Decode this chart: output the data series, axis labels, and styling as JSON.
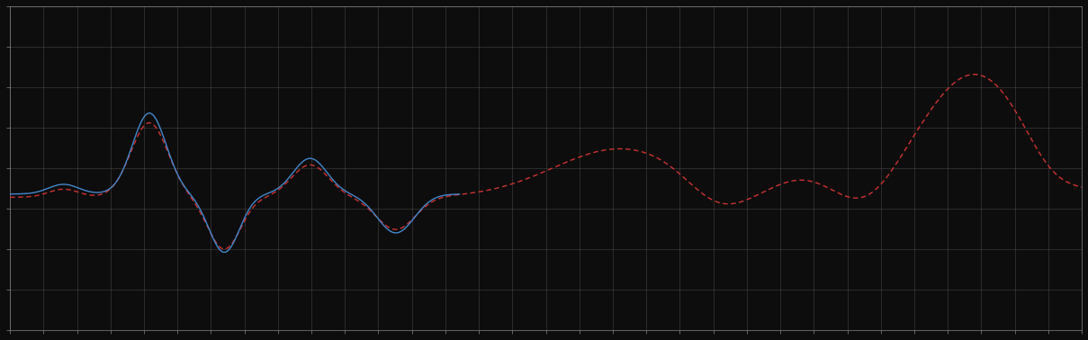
{
  "background_color": "#0d0d0d",
  "plot_bg_color": "#0d0d0d",
  "grid_color": "#555555",
  "line1_color": "#4488cc",
  "line2_color": "#cc3333",
  "line1_style": "-",
  "line2_style": "--",
  "line_width": 1.0,
  "figsize": [
    12.09,
    3.78
  ],
  "dpi": 100,
  "xlim": [
    0,
    100
  ],
  "ylim": [
    0,
    10
  ],
  "grid_alpha": 0.6,
  "tick_color": "#888888",
  "spine_color": "#888888",
  "n_xgrid": 32,
  "n_ygrid": 8
}
